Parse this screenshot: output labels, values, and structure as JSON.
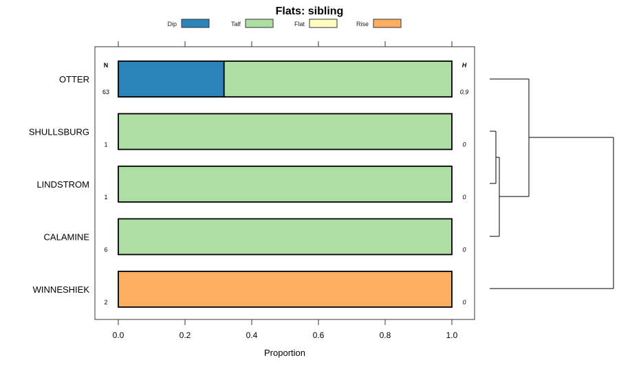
{
  "chart_data": {
    "type": "bar",
    "stacked": true,
    "orientation": "horizontal",
    "title": "Flats: sibling",
    "xlabel": "Proportion",
    "xlim": [
      -0.07,
      1.07
    ],
    "xticks": [
      0.0,
      0.2,
      0.4,
      0.6,
      0.8,
      1.0
    ],
    "xtick_labels": [
      "0.0",
      "0.2",
      "0.4",
      "0.6",
      "0.8",
      "1.0"
    ],
    "legend": {
      "placement": "top",
      "entries": [
        {
          "name": "Dip",
          "color": "#2c83b9"
        },
        {
          "name": "Talf",
          "color": "#addfa5"
        },
        {
          "name": "Flat",
          "color": "#ffffbf"
        },
        {
          "name": "Rise",
          "color": "#fdae61"
        }
      ]
    },
    "n_header": "N",
    "h_header": "H",
    "categories": [
      "OTTER",
      "SHULLSBURG",
      "LINDSTROM",
      "CALAMINE",
      "WINNESHIEK"
    ],
    "n": [
      "63",
      "1",
      "1",
      "6",
      "2"
    ],
    "h": [
      "0.9",
      "0",
      "0",
      "0",
      "0"
    ],
    "series": [
      {
        "name": "Dip",
        "values": [
          0.317,
          0,
          0,
          0,
          0
        ]
      },
      {
        "name": "Talf",
        "values": [
          0.683,
          1,
          1,
          1,
          0
        ]
      },
      {
        "name": "Flat",
        "values": [
          0,
          0,
          0,
          0,
          0
        ]
      },
      {
        "name": "Rise",
        "values": [
          0,
          0,
          0,
          0,
          1
        ]
      }
    ],
    "dendrogram": "cluster tree of categories (right side)"
  }
}
